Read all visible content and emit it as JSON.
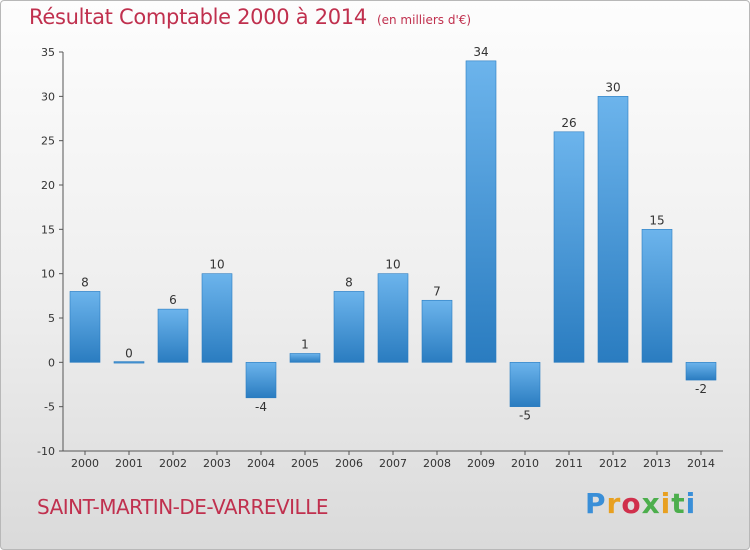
{
  "header": {
    "title": "Résultat Comptable 2000 à 2014",
    "subtitle": "(en milliers d'€)"
  },
  "footer": {
    "town": "SAINT-MARTIN-DE-VARREVILLE",
    "logo": "Proxiti"
  },
  "colors": {
    "title": "#c0304e",
    "bar_top": "#6cb4ec",
    "bar_bottom": "#2a7cc0",
    "axis": "#555555",
    "grid": "#d8d8d8"
  },
  "chart_data": {
    "type": "bar",
    "title": "Résultat Comptable 2000 à 2014",
    "subtitle": "(en milliers d'€)",
    "xlabel": "",
    "ylabel": "",
    "categories": [
      "2000",
      "2001",
      "2002",
      "2003",
      "2004",
      "2005",
      "2006",
      "2007",
      "2008",
      "2009",
      "2010",
      "2011",
      "2012",
      "2013",
      "2014"
    ],
    "values": [
      8,
      0,
      6,
      10,
      -4,
      1,
      8,
      10,
      7,
      34,
      -5,
      26,
      30,
      15,
      -2
    ],
    "ylim": [
      -10,
      35
    ],
    "yticks": [
      -10,
      -5,
      0,
      5,
      10,
      15,
      20,
      25,
      30,
      35
    ],
    "grid": false,
    "legend": "none"
  }
}
